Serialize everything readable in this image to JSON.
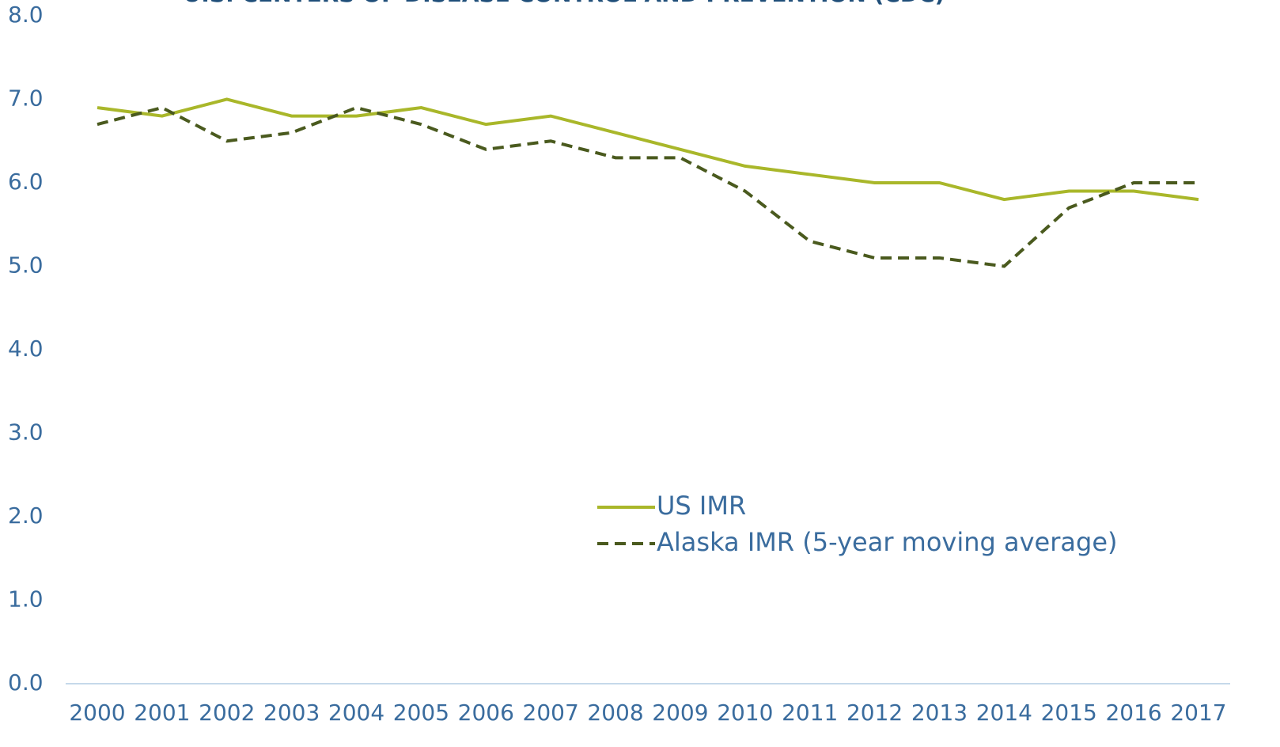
{
  "chart_data": {
    "type": "line",
    "title": "U.S. CENTERS OF DISEASE CONTROL AND PREVENTION (CDC)",
    "categories": [
      "2000",
      "2001",
      "2002",
      "2003",
      "2004",
      "2005",
      "2006",
      "2007",
      "2008",
      "2009",
      "2010",
      "2011",
      "2012",
      "2013",
      "2014",
      "2015",
      "2016",
      "2017"
    ],
    "series": [
      {
        "name": "US IMR",
        "color": "#a9b72a",
        "dashed": false,
        "values": [
          6.9,
          6.8,
          7.0,
          6.8,
          6.8,
          6.9,
          6.7,
          6.8,
          6.6,
          6.4,
          6.2,
          6.1,
          6.0,
          6.0,
          5.8,
          5.9,
          5.9,
          5.8
        ]
      },
      {
        "name": "Alaska IMR (5-year moving average)",
        "color": "#4a5a1e",
        "dashed": true,
        "values": [
          6.7,
          6.9,
          6.5,
          6.6,
          6.9,
          6.7,
          6.4,
          6.5,
          6.3,
          6.3,
          5.9,
          5.3,
          5.1,
          5.1,
          5.0,
          5.7,
          6.0,
          6.0
        ]
      }
    ],
    "ylim": [
      0,
      8
    ],
    "yticks": [
      {
        "value": 0,
        "label": "0.0"
      },
      {
        "value": 1,
        "label": "1.0"
      },
      {
        "value": 2,
        "label": "2.0"
      },
      {
        "value": 3,
        "label": "3.0"
      },
      {
        "value": 4,
        "label": "4.0"
      },
      {
        "value": 5,
        "label": "5.0"
      },
      {
        "value": 6,
        "label": "6.0"
      },
      {
        "value": 7,
        "label": "7.0"
      },
      {
        "value": 8,
        "label": "8.0"
      }
    ],
    "grid": false
  }
}
